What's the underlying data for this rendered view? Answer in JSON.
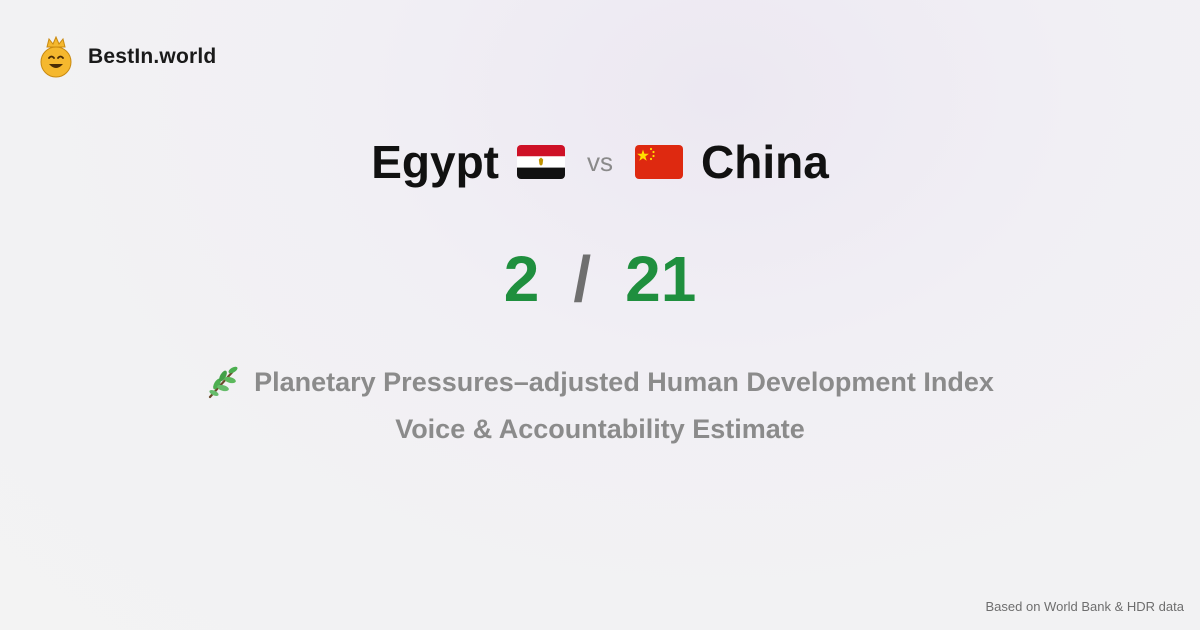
{
  "brand": {
    "name": "BestIn.world",
    "icon": "crowned-smiley-icon"
  },
  "comparison": {
    "country_a": {
      "name": "Egypt",
      "flag": "egypt-flag-icon",
      "rank": "2"
    },
    "vs_label": "vs",
    "country_b": {
      "name": "China",
      "flag": "china-flag-icon",
      "rank": "21"
    },
    "separator": "/"
  },
  "metric": {
    "icon": "herb-icon",
    "primary": "Planetary Pressures–adjusted Human Development Index",
    "secondary": "Voice & Accountability Estimate"
  },
  "footer": {
    "source": "Based on World Bank & HDR data"
  },
  "colors": {
    "rank": "#1f8f3e",
    "muted": "#8b8b8b",
    "brand_icon": "#f5b82e"
  }
}
